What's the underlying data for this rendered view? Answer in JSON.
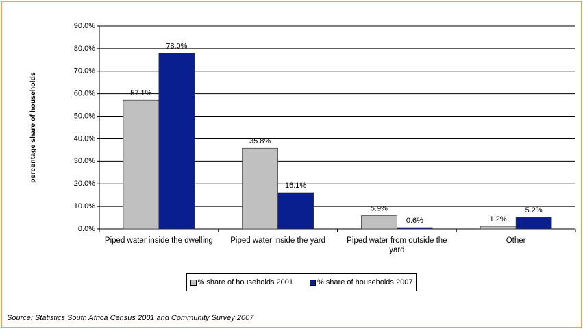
{
  "chart_data": {
    "type": "bar",
    "categories": [
      "Piped water inside the dwelling",
      "Piped water inside the yard",
      "Piped water from outside the yard",
      "Other"
    ],
    "series": [
      {
        "name": "% share of households 2001",
        "color": "#c0c0c0",
        "values": [
          57.1,
          35.8,
          5.9,
          1.2
        ],
        "value_labels": [
          "57.1%",
          "35.8%",
          "5.9%",
          "1.2%"
        ]
      },
      {
        "name": "% share of households 2007",
        "color": "#0a1f8f",
        "values": [
          78.0,
          16.1,
          0.6,
          5.2
        ],
        "value_labels": [
          "78.0%",
          "16.1%",
          "0.6%",
          "5.2%"
        ]
      }
    ],
    "ylabel": "percentage share of households",
    "ylim": [
      0,
      90
    ],
    "yticks": [
      {
        "value": 0,
        "label": "0.0%"
      },
      {
        "value": 10,
        "label": "10.0%"
      },
      {
        "value": 20,
        "label": "20.0%"
      },
      {
        "value": 30,
        "label": "30.0%"
      },
      {
        "value": 40,
        "label": "40.0%"
      },
      {
        "value": 50,
        "label": "50.0%"
      },
      {
        "value": 60,
        "label": "60.0%"
      },
      {
        "value": 70,
        "label": "70.0%"
      },
      {
        "value": 80,
        "label": "80.0%"
      },
      {
        "value": 90,
        "label": "90.0%"
      }
    ],
    "grid": true,
    "legend": "bottom"
  },
  "source": "Source: Statistics South Africa Census 2001 and Community Survey 2007"
}
